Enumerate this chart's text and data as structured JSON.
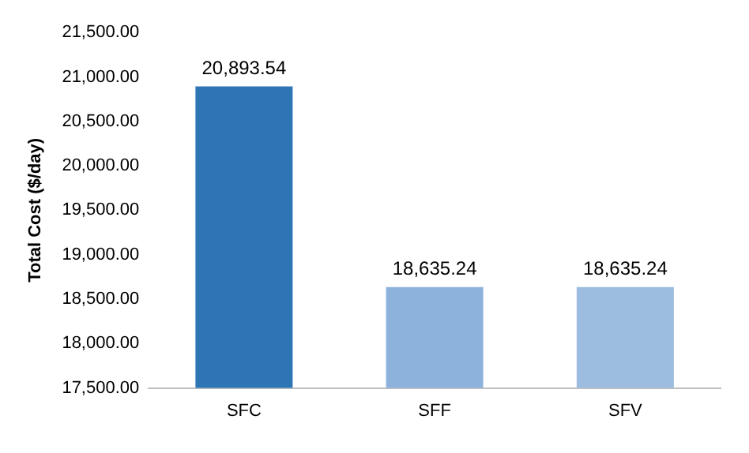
{
  "chart_data": {
    "type": "bar",
    "ylabel": "Total Cost ($/day)",
    "categories": [
      "SFC",
      "SFF",
      "SFV"
    ],
    "values": [
      20893.54,
      18635.24,
      18635.24
    ],
    "colors": [
      "#2e75b6",
      "#8db3dc",
      "#9dbde0"
    ],
    "value_labels": [
      "20,893.54",
      "18,635.24",
      "18,635.24"
    ],
    "ylim": [
      17500,
      21500
    ],
    "yticks": [
      {
        "value": 17500,
        "label": "17,500.00"
      },
      {
        "value": 18000,
        "label": "18,000.00"
      },
      {
        "value": 18500,
        "label": "18,500.00"
      },
      {
        "value": 19000,
        "label": "19,000.00"
      },
      {
        "value": 19500,
        "label": "19,500.00"
      },
      {
        "value": 20000,
        "label": "20,000.00"
      },
      {
        "value": 20500,
        "label": "20,500.00"
      },
      {
        "value": 21000,
        "label": "21,000.00"
      },
      {
        "value": 21500,
        "label": "21,500.00"
      }
    ],
    "grid": false
  }
}
